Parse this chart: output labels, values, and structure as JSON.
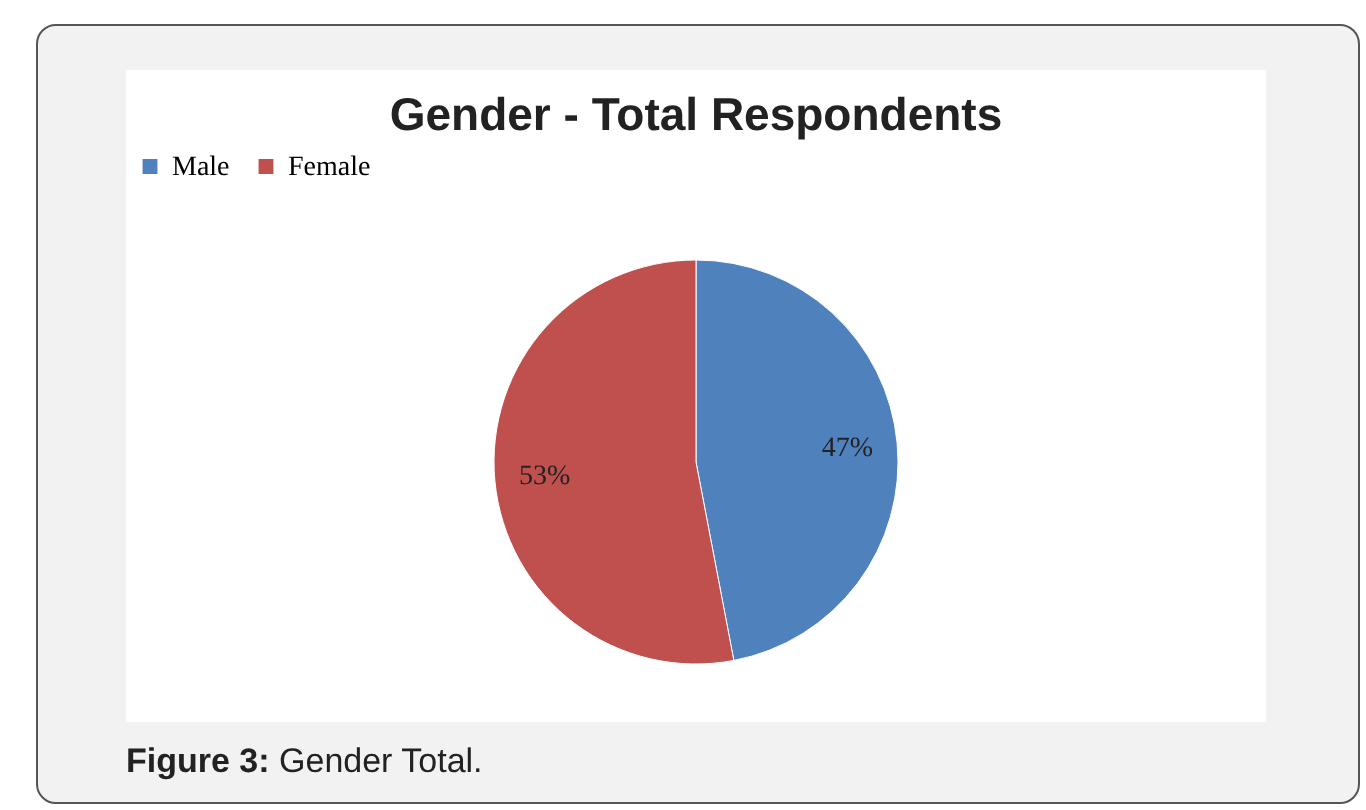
{
  "chart_data": {
    "type": "pie",
    "title": "Gender - Total Respondents",
    "categories": [
      "Male",
      "Female"
    ],
    "values": [
      47,
      53
    ],
    "colors": [
      "#4f81bd",
      "#c0504d"
    ],
    "value_labels": [
      "47%",
      "53%"
    ],
    "legend": "top",
    "annotations": [
      "Figure 3: Gender Total."
    ]
  }
}
